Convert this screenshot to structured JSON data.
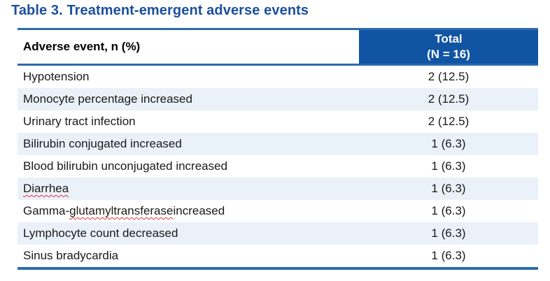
{
  "title": "Table 3. Treatment-emergent adverse events",
  "colors": {
    "header_fill": "#1254A4",
    "border": "#2C6BAB",
    "stripe": "#EBF1F9",
    "title_text": "#1B4F9E",
    "squiggle": "#E0342F",
    "body_text": "#1A1A1A"
  },
  "table": {
    "columns": {
      "adverse_event": "Adverse event, n (%)",
      "total": {
        "line1": "Total",
        "line2": "(N = 16)"
      }
    },
    "rows": [
      {
        "segments": [
          {
            "text": "Hypotension",
            "squiggle": false
          }
        ],
        "value": "2 (12.5)"
      },
      {
        "segments": [
          {
            "text": "Monocyte percentage increased",
            "squiggle": false
          }
        ],
        "value": "2 (12.5)"
      },
      {
        "segments": [
          {
            "text": "Urinary tract infection",
            "squiggle": false
          }
        ],
        "value": "2 (12.5)"
      },
      {
        "segments": [
          {
            "text": "Bilirubin conjugated increased",
            "squiggle": false
          }
        ],
        "value": "1 (6.3)"
      },
      {
        "segments": [
          {
            "text": "Blood bilirubin unconjugated increased",
            "squiggle": false
          }
        ],
        "value": "1 (6.3)"
      },
      {
        "segments": [
          {
            "text": "Diarrhea",
            "squiggle": true
          }
        ],
        "value": "1 (6.3)"
      },
      {
        "segments": [
          {
            "text": "Gamma-",
            "squiggle": false
          },
          {
            "text": "glutamyltransferase",
            "squiggle": true
          },
          {
            "text": " increased",
            "squiggle": false
          }
        ],
        "value": "1 (6.3)"
      },
      {
        "segments": [
          {
            "text": "Lymphocyte count decreased",
            "squiggle": false
          }
        ],
        "value": "1 (6.3)"
      },
      {
        "segments": [
          {
            "text": "Sinus bradycardia",
            "squiggle": false
          }
        ],
        "value": "1 (6.3)"
      }
    ]
  }
}
